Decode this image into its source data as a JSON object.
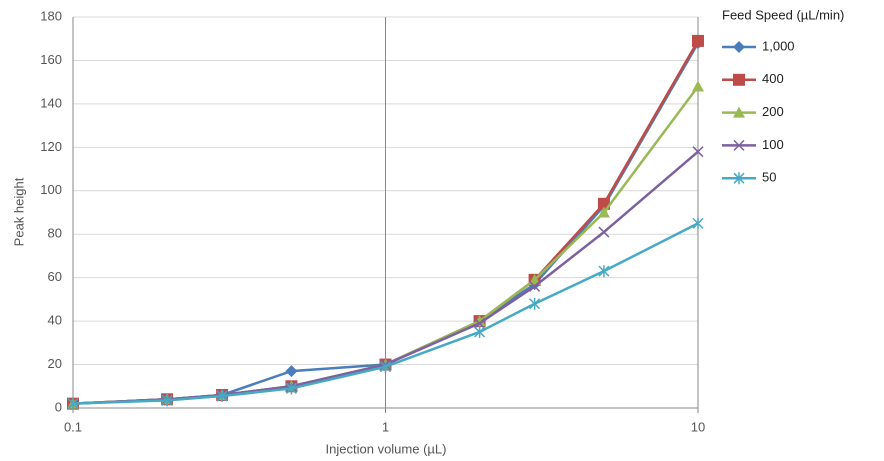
{
  "chart_data": {
    "type": "line",
    "x_label": "Injection volume (µL)",
    "y_label": "Peak height",
    "legend_title": "Feed Speed (µL/min)",
    "legend": "right",
    "x_scale": "log",
    "grid": true,
    "x": [
      0.1,
      0.2,
      0.3,
      0.5,
      1,
      2,
      3,
      5,
      10
    ],
    "xlim": [
      0.1,
      10
    ],
    "xticks": [
      0.1,
      1,
      10
    ],
    "ylim": [
      0,
      180
    ],
    "yticks": [
      0,
      20,
      40,
      60,
      80,
      100,
      120,
      140,
      160,
      180
    ],
    "series": [
      {
        "name": "1,000",
        "color": "#4a7ebb",
        "marker": "diamond",
        "values": [
          2,
          4,
          6,
          17,
          20,
          40,
          57,
          93,
          168
        ]
      },
      {
        "name": "400",
        "color": "#be4b48",
        "marker": "square",
        "values": [
          2,
          4,
          6,
          10,
          20,
          40,
          59,
          94,
          169
        ]
      },
      {
        "name": "200",
        "color": "#98b954",
        "marker": "triangle",
        "values": [
          2,
          4,
          6,
          10,
          20,
          40,
          59,
          90,
          148
        ]
      },
      {
        "name": "100",
        "color": "#7d60a0",
        "marker": "x",
        "values": [
          2,
          4,
          6,
          10,
          20,
          39,
          56,
          81,
          118
        ]
      },
      {
        "name": "50",
        "color": "#46aac5",
        "marker": "star",
        "values": [
          2,
          3.5,
          5.5,
          9,
          19,
          35,
          48,
          63,
          85
        ]
      }
    ]
  }
}
